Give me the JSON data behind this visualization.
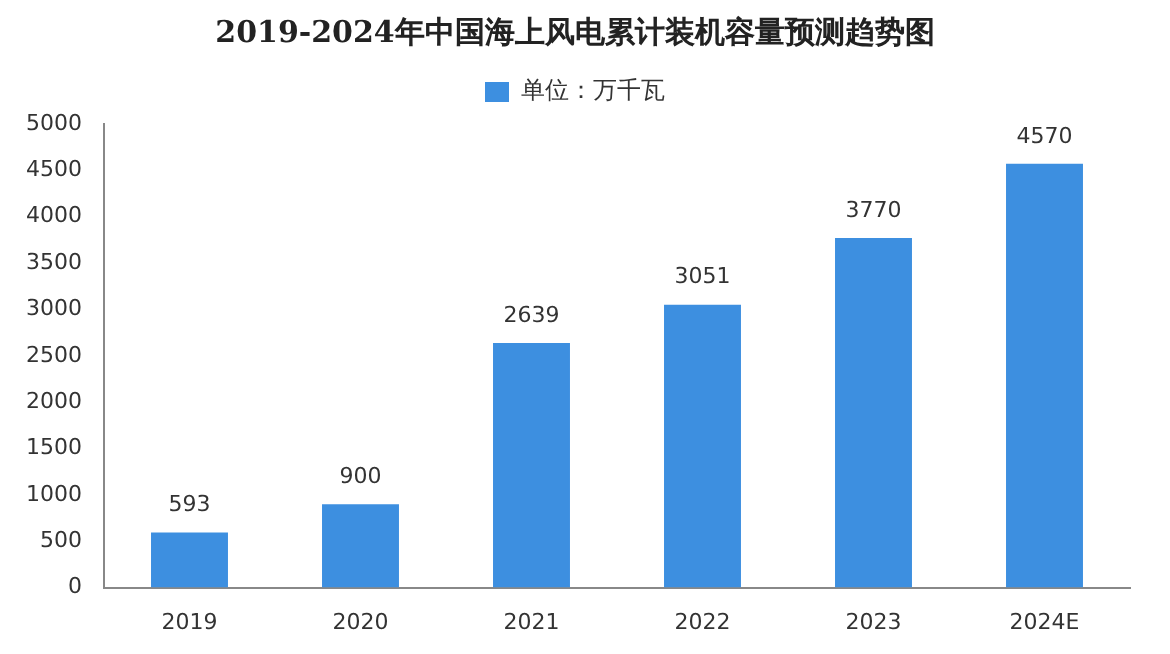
{
  "chart_data": {
    "type": "bar",
    "title": "2019-2024年中国海上风电累计装机容量预测趋势图",
    "categories": [
      "2019",
      "2020",
      "2021",
      "2022",
      "2023",
      "2024E"
    ],
    "series": [
      {
        "name": "单位：万千瓦",
        "color": "#3d8fe0",
        "values": [
          593,
          900,
          2639,
          3051,
          3770,
          4570
        ]
      }
    ],
    "ylim": [
      0,
      5000
    ],
    "yticks": [
      0,
      500,
      1000,
      1500,
      2000,
      2500,
      3000,
      3500,
      4000,
      4500,
      5000
    ],
    "grid": false,
    "legend": "top",
    "data_labels": true
  }
}
